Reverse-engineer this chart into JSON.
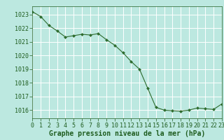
{
  "x": [
    0,
    1,
    2,
    3,
    4,
    5,
    6,
    7,
    8,
    9,
    10,
    11,
    12,
    13,
    14,
    15,
    16,
    17,
    18,
    19,
    20,
    21,
    22,
    23
  ],
  "y": [
    1023.2,
    1022.85,
    1022.2,
    1021.8,
    1021.35,
    1021.45,
    1021.55,
    1021.5,
    1021.6,
    1021.15,
    1020.75,
    1020.2,
    1019.55,
    1019.0,
    1017.6,
    1016.2,
    1016.0,
    1015.95,
    1015.92,
    1016.0,
    1016.15,
    1016.1,
    1016.05,
    1016.45
  ],
  "xlim": [
    0,
    23
  ],
  "ylim": [
    1015.4,
    1023.6
  ],
  "yticks": [
    1016,
    1017,
    1018,
    1019,
    1020,
    1021,
    1022,
    1023
  ],
  "xticks": [
    0,
    1,
    2,
    3,
    4,
    5,
    6,
    7,
    8,
    9,
    10,
    11,
    12,
    13,
    14,
    15,
    16,
    17,
    18,
    19,
    20,
    21,
    22,
    23
  ],
  "xlabel": "Graphe pression niveau de la mer (hPa)",
  "line_color": "#2d6b2d",
  "marker": "D",
  "marker_size": 2.0,
  "bg_color": "#bce8e0",
  "grid_color": "#d8f0ec",
  "text_color": "#1e5c1e",
  "xlabel_fontsize": 7.0,
  "tick_fontsize": 6.0,
  "linewidth": 0.8
}
